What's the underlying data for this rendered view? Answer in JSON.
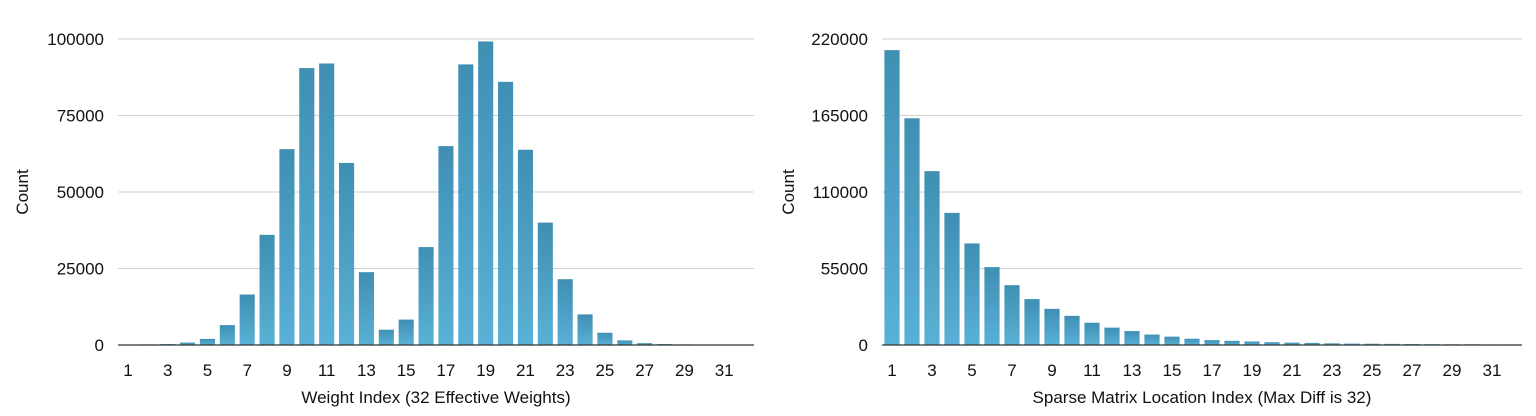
{
  "colors": {
    "bar_top": "#3f8fb3",
    "bar_bottom": "#5ab0d6"
  },
  "chart_data": [
    {
      "type": "bar",
      "xlabel": "Weight Index (32 Effective Weights)",
      "ylabel": "Count",
      "ylim": [
        0,
        100000
      ],
      "yticks": [
        "0",
        "25000",
        "50000",
        "75000",
        "100000"
      ],
      "grid": true,
      "categories": [
        1,
        2,
        3,
        4,
        5,
        6,
        7,
        8,
        9,
        10,
        11,
        12,
        13,
        14,
        15,
        16,
        17,
        18,
        19,
        20,
        21,
        22,
        23,
        24,
        25,
        26,
        27,
        28,
        29,
        30,
        31,
        32
      ],
      "xtick_labels": [
        "1",
        "3",
        "5",
        "7",
        "9",
        "11",
        "13",
        "15",
        "17",
        "19",
        "21",
        "23",
        "25",
        "27",
        "29",
        "31"
      ],
      "values": [
        150,
        200,
        300,
        800,
        2000,
        6500,
        16500,
        36000,
        64000,
        90500,
        92000,
        59500,
        23800,
        5000,
        8300,
        32000,
        65000,
        91700,
        99200,
        86000,
        63800,
        40000,
        21500,
        10000,
        4000,
        1500,
        600,
        300,
        200,
        150,
        100,
        100
      ]
    },
    {
      "type": "bar",
      "xlabel": "Sparse Matrix Location Index (Max Diff is 32)",
      "ylabel": "Count",
      "ylim": [
        0,
        220000
      ],
      "yticks": [
        "0",
        "55000",
        "110000",
        "165000",
        "220000"
      ],
      "grid": true,
      "categories": [
        1,
        2,
        3,
        4,
        5,
        6,
        7,
        8,
        9,
        10,
        11,
        12,
        13,
        14,
        15,
        16,
        17,
        18,
        19,
        20,
        21,
        22,
        23,
        24,
        25,
        26,
        27,
        28,
        29,
        30,
        31,
        32
      ],
      "xtick_labels": [
        "1",
        "3",
        "5",
        "7",
        "9",
        "11",
        "13",
        "15",
        "17",
        "19",
        "21",
        "23",
        "25",
        "27",
        "29",
        "31"
      ],
      "values": [
        212000,
        163000,
        125000,
        95000,
        73000,
        56000,
        43000,
        33000,
        26000,
        21000,
        16000,
        12500,
        10000,
        7500,
        6000,
        4500,
        3500,
        3000,
        2500,
        2000,
        1700,
        1500,
        1200,
        1000,
        900,
        800,
        700,
        600,
        500,
        500,
        400,
        400
      ]
    }
  ]
}
